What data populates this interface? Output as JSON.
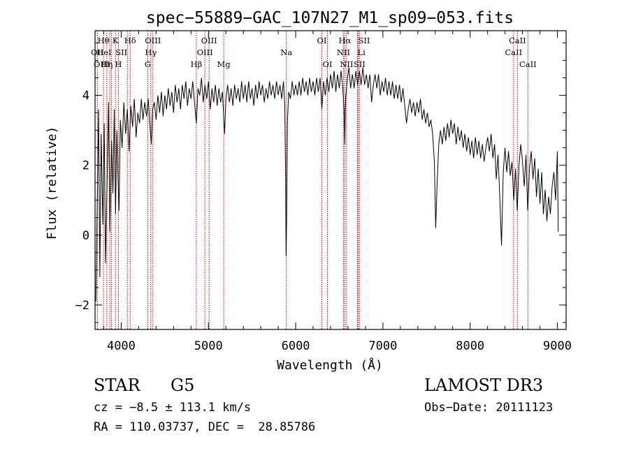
{
  "chart_data": {
    "type": "line",
    "title": "spec−55889−GAC_107N27_M1_sp09−053.fits",
    "xlabel": "Wavelength (Å)",
    "ylabel": "Flux (relative)",
    "xlim": [
      3700,
      9100
    ],
    "ylim": [
      -2.7,
      5.85
    ],
    "x_ticks": [
      4000,
      5000,
      6000,
      7000,
      8000,
      9000
    ],
    "x_tick_labels": [
      "4000",
      "5000",
      "6000",
      "7000",
      "8000",
      "9000"
    ],
    "y_ticks": [
      -2,
      0,
      2,
      4
    ],
    "y_tick_labels": [
      "−2",
      "0",
      "2",
      "4"
    ],
    "spectrum_points": [
      [
        3710,
        -1.9
      ],
      [
        3725,
        0.8
      ],
      [
        3740,
        3.6
      ],
      [
        3755,
        -1.2
      ],
      [
        3770,
        2.9
      ],
      [
        3790,
        0.3
      ],
      [
        3805,
        3.2
      ],
      [
        3820,
        -0.8
      ],
      [
        3840,
        1.8
      ],
      [
        3855,
        3.8
      ],
      [
        3870,
        0.1
      ],
      [
        3890,
        2.7
      ],
      [
        3905,
        1.2
      ],
      [
        3920,
        3.6
      ],
      [
        3935,
        0.6
      ],
      [
        3950,
        3.0
      ],
      [
        3965,
        1.5
      ],
      [
        3975,
        0.7
      ],
      [
        3990,
        3.3
      ],
      [
        4010,
        2.5
      ],
      [
        4030,
        3.8
      ],
      [
        4050,
        2.9
      ],
      [
        4070,
        3.6
      ],
      [
        4090,
        2.4
      ],
      [
        4110,
        3.7
      ],
      [
        4130,
        3.1
      ],
      [
        4150,
        3.9
      ],
      [
        4170,
        2.8
      ],
      [
        4190,
        3.5
      ],
      [
        4210,
        3.2
      ],
      [
        4230,
        3.9
      ],
      [
        4250,
        3.3
      ],
      [
        4270,
        3.8
      ],
      [
        4290,
        3.4
      ],
      [
        4310,
        3.9
      ],
      [
        4330,
        3.1
      ],
      [
        4345,
        2.6
      ],
      [
        4360,
        3.6
      ],
      [
        4380,
        3.8
      ],
      [
        4400,
        3.3
      ],
      [
        4420,
        4.0
      ],
      [
        4440,
        3.5
      ],
      [
        4460,
        4.1
      ],
      [
        4480,
        3.4
      ],
      [
        4500,
        4.0
      ],
      [
        4520,
        3.6
      ],
      [
        4540,
        4.2
      ],
      [
        4560,
        3.7
      ],
      [
        4580,
        4.1
      ],
      [
        4600,
        3.5
      ],
      [
        4620,
        4.3
      ],
      [
        4640,
        3.8
      ],
      [
        4660,
        4.2
      ],
      [
        4680,
        3.6
      ],
      [
        4700,
        4.3
      ],
      [
        4720,
        3.9
      ],
      [
        4740,
        4.4
      ],
      [
        4760,
        3.7
      ],
      [
        4780,
        4.2
      ],
      [
        4800,
        3.9
      ],
      [
        4820,
        4.4
      ],
      [
        4840,
        3.8
      ],
      [
        4861,
        3.2
      ],
      [
        4880,
        4.2
      ],
      [
        4900,
        4.0
      ],
      [
        4920,
        4.5
      ],
      [
        4940,
        3.8
      ],
      [
        4960,
        4.3
      ],
      [
        4980,
        3.9
      ],
      [
        5000,
        4.4
      ],
      [
        5020,
        3.6
      ],
      [
        5040,
        4.2
      ],
      [
        5060,
        3.8
      ],
      [
        5080,
        4.3
      ],
      [
        5100,
        3.7
      ],
      [
        5120,
        4.2
      ],
      [
        5140,
        3.8
      ],
      [
        5160,
        4.1
      ],
      [
        5175,
        3.4
      ],
      [
        5185,
        2.9
      ],
      [
        5200,
        3.9
      ],
      [
        5220,
        4.3
      ],
      [
        5240,
        3.8
      ],
      [
        5260,
        4.2
      ],
      [
        5280,
        3.7
      ],
      [
        5300,
        4.3
      ],
      [
        5320,
        3.9
      ],
      [
        5340,
        4.2
      ],
      [
        5360,
        3.8
      ],
      [
        5380,
        4.4
      ],
      [
        5400,
        3.9
      ],
      [
        5420,
        4.3
      ],
      [
        5440,
        3.8
      ],
      [
        5460,
        4.4
      ],
      [
        5480,
        3.9
      ],
      [
        5500,
        4.2
      ],
      [
        5520,
        3.7
      ],
      [
        5540,
        4.3
      ],
      [
        5560,
        3.9
      ],
      [
        5580,
        4.4
      ],
      [
        5600,
        4.0
      ],
      [
        5620,
        4.3
      ],
      [
        5640,
        3.8
      ],
      [
        5660,
        4.2
      ],
      [
        5680,
        3.9
      ],
      [
        5700,
        4.4
      ],
      [
        5720,
        4.0
      ],
      [
        5740,
        4.3
      ],
      [
        5760,
        3.9
      ],
      [
        5780,
        4.4
      ],
      [
        5800,
        4.0
      ],
      [
        5820,
        4.3
      ],
      [
        5840,
        3.9
      ],
      [
        5860,
        4.4
      ],
      [
        5875,
        3.7
      ],
      [
        5885,
        1.5
      ],
      [
        5890,
        -0.6
      ],
      [
        5896,
        0.4
      ],
      [
        5905,
        3.2
      ],
      [
        5920,
        4.1
      ],
      [
        5940,
        3.9
      ],
      [
        5960,
        4.4
      ],
      [
        5980,
        4.0
      ],
      [
        6000,
        4.3
      ],
      [
        6020,
        4.0
      ],
      [
        6040,
        4.4
      ],
      [
        6060,
        4.0
      ],
      [
        6080,
        4.5
      ],
      [
        6100,
        4.1
      ],
      [
        6120,
        4.4
      ],
      [
        6140,
        4.0
      ],
      [
        6160,
        4.5
      ],
      [
        6180,
        4.1
      ],
      [
        6200,
        4.4
      ],
      [
        6220,
        4.0
      ],
      [
        6240,
        4.5
      ],
      [
        6260,
        4.1
      ],
      [
        6280,
        4.5
      ],
      [
        6300,
        3.6
      ],
      [
        6320,
        4.4
      ],
      [
        6340,
        4.0
      ],
      [
        6360,
        4.5
      ],
      [
        6380,
        4.1
      ],
      [
        6400,
        4.6
      ],
      [
        6420,
        4.2
      ],
      [
        6440,
        4.7
      ],
      [
        6460,
        4.1
      ],
      [
        6480,
        4.6
      ],
      [
        6500,
        4.2
      ],
      [
        6520,
        4.7
      ],
      [
        6540,
        4.2
      ],
      [
        6555,
        3.6
      ],
      [
        6563,
        2.6
      ],
      [
        6572,
        3.9
      ],
      [
        6590,
        4.4
      ],
      [
        6610,
        4.8
      ],
      [
        6630,
        4.2
      ],
      [
        6650,
        4.6
      ],
      [
        6670,
        4.2
      ],
      [
        6690,
        4.7
      ],
      [
        6710,
        4.3
      ],
      [
        6730,
        4.7
      ],
      [
        6750,
        4.3
      ],
      [
        6770,
        4.8
      ],
      [
        6790,
        4.3
      ],
      [
        6810,
        4.6
      ],
      [
        6830,
        4.2
      ],
      [
        6850,
        4.6
      ],
      [
        6870,
        3.8
      ],
      [
        6890,
        4.3
      ],
      [
        6910,
        4.6
      ],
      [
        6930,
        4.2
      ],
      [
        6950,
        4.6
      ],
      [
        6970,
        4.0
      ],
      [
        6990,
        4.4
      ],
      [
        7010,
        4.1
      ],
      [
        7030,
        4.5
      ],
      [
        7050,
        4.0
      ],
      [
        7070,
        4.4
      ],
      [
        7090,
        4.0
      ],
      [
        7110,
        4.4
      ],
      [
        7130,
        3.9
      ],
      [
        7150,
        4.3
      ],
      [
        7170,
        3.9
      ],
      [
        7190,
        4.3
      ],
      [
        7210,
        3.8
      ],
      [
        7230,
        4.2
      ],
      [
        7250,
        3.7
      ],
      [
        7270,
        3.2
      ],
      [
        7290,
        3.6
      ],
      [
        7310,
        3.9
      ],
      [
        7330,
        3.5
      ],
      [
        7350,
        3.8
      ],
      [
        7370,
        3.4
      ],
      [
        7390,
        3.8
      ],
      [
        7410,
        3.5
      ],
      [
        7430,
        3.9
      ],
      [
        7450,
        3.3
      ],
      [
        7470,
        3.6
      ],
      [
        7490,
        3.2
      ],
      [
        7510,
        3.5
      ],
      [
        7530,
        3.1
      ],
      [
        7550,
        3.3
      ],
      [
        7570,
        2.9
      ],
      [
        7590,
        2.1
      ],
      [
        7605,
        0.2
      ],
      [
        7620,
        1.4
      ],
      [
        7640,
        2.6
      ],
      [
        7660,
        3.0
      ],
      [
        7680,
        2.6
      ],
      [
        7700,
        3.1
      ],
      [
        7720,
        2.7
      ],
      [
        7740,
        3.2
      ],
      [
        7760,
        2.8
      ],
      [
        7780,
        3.3
      ],
      [
        7800,
        2.9
      ],
      [
        7820,
        3.2
      ],
      [
        7840,
        2.6
      ],
      [
        7860,
        3.1
      ],
      [
        7880,
        2.7
      ],
      [
        7900,
        3.0
      ],
      [
        7920,
        2.5
      ],
      [
        7940,
        2.9
      ],
      [
        7960,
        2.4
      ],
      [
        7980,
        2.8
      ],
      [
        8000,
        2.3
      ],
      [
        8020,
        2.7
      ],
      [
        8040,
        2.2
      ],
      [
        8060,
        2.8
      ],
      [
        8080,
        2.3
      ],
      [
        8100,
        2.7
      ],
      [
        8120,
        2.2
      ],
      [
        8140,
        2.6
      ],
      [
        8160,
        2.1
      ],
      [
        8180,
        2.5
      ],
      [
        8200,
        2.8
      ],
      [
        8220,
        2.4
      ],
      [
        8240,
        2.9
      ],
      [
        8260,
        2.2
      ],
      [
        8280,
        2.6
      ],
      [
        8300,
        1.6
      ],
      [
        8320,
        2.3
      ],
      [
        8340,
        1.1
      ],
      [
        8360,
        -0.3
      ],
      [
        8380,
        1.8
      ],
      [
        8400,
        2.5
      ],
      [
        8420,
        1.8
      ],
      [
        8440,
        2.4
      ],
      [
        8460,
        1.7
      ],
      [
        8480,
        2.1
      ],
      [
        8500,
        1.0
      ],
      [
        8520,
        1.9
      ],
      [
        8540,
        0.7
      ],
      [
        8560,
        2.0
      ],
      [
        8580,
        2.6
      ],
      [
        8600,
        2.1
      ],
      [
        8620,
        1.4
      ],
      [
        8640,
        2.3
      ],
      [
        8660,
        0.7
      ],
      [
        8680,
        1.9
      ],
      [
        8700,
        2.4
      ],
      [
        8720,
        1.6
      ],
      [
        8740,
        2.2
      ],
      [
        8760,
        1.1
      ],
      [
        8780,
        1.9
      ],
      [
        8800,
        0.9
      ],
      [
        8820,
        1.8
      ],
      [
        8840,
        0.6
      ],
      [
        8860,
        1.3
      ],
      [
        8880,
        0.4
      ],
      [
        8900,
        1.1
      ],
      [
        8920,
        0.6
      ],
      [
        8940,
        1.4
      ],
      [
        8960,
        1.8
      ],
      [
        8980,
        1.0
      ],
      [
        9000,
        2.4
      ],
      [
        9010,
        0.1
      ]
    ],
    "line_markers": [
      {
        "label": "Hθ",
        "x": 3797,
        "row": 0,
        "side": "center"
      },
      {
        "label": "OII",
        "x": 3727,
        "row": 1,
        "side": "center"
      },
      {
        "label": "OIII",
        "x": 3869,
        "row": 2,
        "side": "left"
      },
      {
        "label": "K",
        "x": 3934,
        "row": 0,
        "side": "center"
      },
      {
        "label": "HeI",
        "x": 3889,
        "row": 1,
        "side": "left"
      },
      {
        "label": "Hη",
        "x": 3835,
        "row": 2,
        "side": "center"
      },
      {
        "label": "SII",
        "x": 4070,
        "row": 1,
        "side": "left"
      },
      {
        "label": "H",
        "x": 3968,
        "row": 2,
        "side": "center"
      },
      {
        "label": "Hδ",
        "x": 4102,
        "row": 0,
        "side": "center"
      },
      {
        "label": "OIII",
        "x": 4363,
        "row": 0,
        "side": "center"
      },
      {
        "label": "Hγ",
        "x": 4340,
        "row": 1,
        "side": "center"
      },
      {
        "label": "G",
        "x": 4305,
        "row": 2,
        "side": "center"
      },
      {
        "label": "OIII",
        "x": 5007,
        "row": 0,
        "side": "center"
      },
      {
        "label": "OIII",
        "x": 4959,
        "row": 1,
        "side": "center"
      },
      {
        "label": "Hβ",
        "x": 4861,
        "row": 2,
        "side": "center"
      },
      {
        "label": "Mg",
        "x": 5175,
        "row": 2,
        "side": "center"
      },
      {
        "label": "Na",
        "x": 5893,
        "row": 1,
        "side": "center"
      },
      {
        "label": "OI",
        "x": 6300,
        "row": 0,
        "side": "center"
      },
      {
        "label": "OI",
        "x": 6364,
        "row": 2,
        "side": "center"
      },
      {
        "label": "Hα",
        "x": 6563,
        "row": 0,
        "side": "center"
      },
      {
        "label": "SII",
        "x": 6716,
        "row": 0,
        "side": "right"
      },
      {
        "label": "NII",
        "x": 6548,
        "row": 1,
        "side": "center"
      },
      {
        "label": "Li",
        "x": 6708,
        "row": 1,
        "side": "right"
      },
      {
        "label": "NII",
        "x": 6583,
        "row": 2,
        "side": "center"
      },
      {
        "label": "SII",
        "x": 6731,
        "row": 2,
        "side": "center"
      },
      {
        "label": "CaII",
        "x": 8542,
        "row": 0,
        "side": "center"
      },
      {
        "label": "CaII",
        "x": 8498,
        "row": 1,
        "side": "center"
      },
      {
        "label": "CaII",
        "x": 8662,
        "row": 2,
        "side": "center"
      }
    ],
    "colors": {
      "spectrum": "#000000",
      "marker": "#cc0000",
      "axes": "#000000"
    }
  },
  "info": {
    "class_label": "STAR",
    "subclass": "G5",
    "redshift": "cz = −8.5 ± 113.1 km/s",
    "coords": "RA = 110.03737, DEC =  28.85786",
    "survey": "LAMOST DR3",
    "obs_date": "Obs−Date: 20111123"
  }
}
